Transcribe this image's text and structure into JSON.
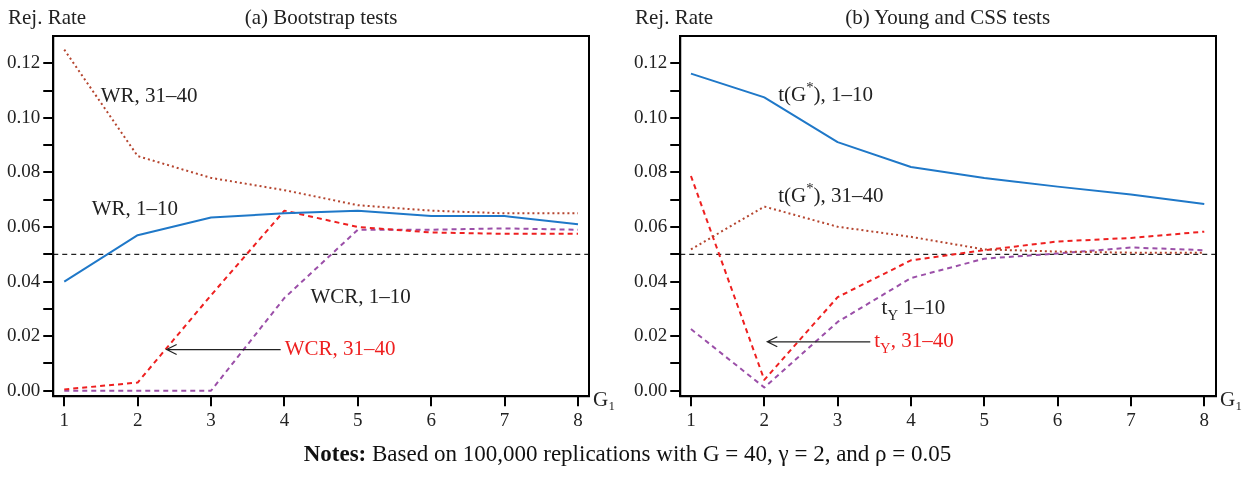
{
  "chart_data": [
    {
      "type": "line",
      "title": "(a) Bootstrap tests",
      "ylabel": "Rej. Rate",
      "xlabel": "G₁",
      "x": [
        1,
        2,
        3,
        4,
        5,
        6,
        7,
        8
      ],
      "series": [
        {
          "name": "WR, 1–10",
          "color": "#1f78c8",
          "line_style": "solid",
          "values": [
            0.04,
            0.057,
            0.0635,
            0.065,
            0.066,
            0.064,
            0.064,
            0.061
          ]
        },
        {
          "name": "WR, 31–40",
          "color": "#b5452f",
          "line_style": "dotted",
          "values": [
            0.125,
            0.086,
            0.078,
            0.0735,
            0.068,
            0.066,
            0.065,
            0.065
          ]
        },
        {
          "name": "WCR, 31–40",
          "color": "#ee2020",
          "line_style": "dashed",
          "values": [
            0.0005,
            0.003,
            0.035,
            0.066,
            0.06,
            0.058,
            0.0575,
            0.0575
          ]
        },
        {
          "name": "WCR, 1–10",
          "color": "#9b4fa8",
          "line_style": "dashed",
          "values": [
            0,
            0,
            0,
            0.034,
            0.059,
            0.059,
            0.0595,
            0.059
          ]
        }
      ],
      "xlim": [
        0.85,
        8.15
      ],
      "xticks": [
        1,
        2,
        3,
        4,
        5,
        6,
        7,
        8
      ],
      "ylim": [
        -0.002,
        0.13
      ],
      "yticks": [
        {
          "value": 0,
          "label": "0.00"
        },
        {
          "value": 0.01,
          "label": null
        },
        {
          "value": 0.02,
          "label": "0.02"
        },
        {
          "value": 0.03,
          "label": null
        },
        {
          "value": 0.04,
          "label": "0.04"
        },
        {
          "value": 0.05,
          "label": null
        },
        {
          "value": 0.06,
          "label": "0.06"
        },
        {
          "value": 0.07,
          "label": null
        },
        {
          "value": 0.08,
          "label": "0.08"
        },
        {
          "value": 0.09,
          "label": null
        },
        {
          "value": 0.1,
          "label": "0.10"
        },
        {
          "value": 0.11,
          "label": null
        },
        {
          "value": 0.12,
          "label": "0.12"
        }
      ],
      "ref_lines": [
        {
          "axis": "y",
          "value": 0.05,
          "color": "#222222",
          "line_style": "dashed"
        }
      ],
      "grid": false,
      "legend": false,
      "marker": "none",
      "annotations": [
        "Notes: Based on 100,000 replications with G = 40, γ = 2, and ρ = 0.05"
      ]
    },
    {
      "type": "line",
      "title": "(b) Young and CSS tests",
      "ylabel": "Rej. Rate",
      "xlabel": "G₁",
      "x": [
        1,
        2,
        3,
        4,
        5,
        6,
        7,
        8
      ],
      "series": [
        {
          "name": "t(G$^{*}$), 1–10",
          "color": "#1f78c8",
          "line_style": "solid",
          "values": [
            0.1162,
            0.1075,
            0.0911,
            0.082,
            0.078,
            0.0748,
            0.0719,
            0.0684
          ]
        },
        {
          "name": "t(G$^{*}$), 31–40",
          "color": "#b5452f",
          "line_style": "dotted",
          "values": [
            0.0518,
            0.0675,
            0.0601,
            0.0564,
            0.0518,
            0.051,
            0.0506,
            0.0506
          ]
        },
        {
          "name": "t$_{Y}$, 31–40",
          "color": "#ee2020",
          "line_style": "dashed",
          "values": [
            0.0787,
            0.004,
            0.0343,
            0.0478,
            0.0515,
            0.0547,
            0.056,
            0.0583
          ]
        },
        {
          "name": "t$_{Y}$ 1–10",
          "color": "#9b4fa8",
          "line_style": "dashed",
          "values": [
            0.0226,
            0.0012,
            0.0252,
            0.0413,
            0.0484,
            0.0503,
            0.0525,
            0.0515
          ]
        }
      ],
      "xlim": [
        0.854,
        8.16
      ],
      "xticks": [
        1,
        2,
        3,
        4,
        5,
        6,
        7,
        8
      ],
      "ylim": [
        -0.002,
        0.13
      ],
      "yticks": [
        {
          "value": 0,
          "label": "0.00"
        },
        {
          "value": 0.01,
          "label": null
        },
        {
          "value": 0.02,
          "label": "0.02"
        },
        {
          "value": 0.03,
          "label": null
        },
        {
          "value": 0.04,
          "label": "0.04"
        },
        {
          "value": 0.05,
          "label": null
        },
        {
          "value": 0.06,
          "label": "0.06"
        },
        {
          "value": 0.07,
          "label": null
        },
        {
          "value": 0.08,
          "label": "0.08"
        },
        {
          "value": 0.09,
          "label": null
        },
        {
          "value": 0.1,
          "label": "0.10"
        },
        {
          "value": 0.11,
          "label": null
        },
        {
          "value": 0.12,
          "label": "0.12"
        }
      ],
      "ref_lines": [
        {
          "axis": "y",
          "value": 0.05,
          "color": "#222222",
          "line_style": "dashed"
        }
      ],
      "grid": false,
      "legend": false,
      "marker": "none"
    }
  ]
}
